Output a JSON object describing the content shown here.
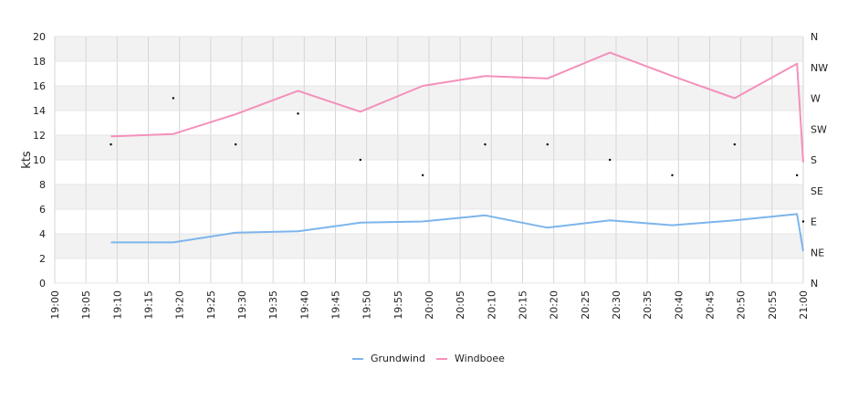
{
  "chart_data": {
    "type": "line",
    "ylabel": "kts",
    "ylim": [
      0,
      20
    ],
    "y_ticks": [
      "0",
      "2",
      "4",
      "6",
      "8",
      "10",
      "12",
      "14",
      "16",
      "18",
      "20"
    ],
    "x_ticks": [
      "19:00",
      "19:05",
      "19:10",
      "19:15",
      "19:20",
      "19:25",
      "19:30",
      "19:35",
      "19:40",
      "19:45",
      "19:50",
      "19:55",
      "20:00",
      "20:05",
      "20:10",
      "20:15",
      "20:20",
      "20:25",
      "20:30",
      "20:35",
      "20:40",
      "20:45",
      "20:50",
      "20:55",
      "21:00"
    ],
    "y2_ticks": [
      "N",
      "NE",
      "E",
      "SE",
      "S",
      "SW",
      "W",
      "NW",
      "N"
    ],
    "y2lim": [
      0,
      360
    ],
    "grid": true,
    "legend": "bottom-center",
    "series": [
      {
        "name": "Grundwind",
        "color": "#7cb5ec",
        "x": [
          "19:09",
          "19:19",
          "19:29",
          "19:39",
          "19:49",
          "19:59",
          "20:09",
          "20:19",
          "20:29",
          "20:39",
          "20:49",
          "20:59",
          "21:00"
        ],
        "values": [
          3.3,
          3.3,
          4.1,
          4.2,
          4.9,
          5.0,
          5.5,
          4.5,
          5.1,
          4.7,
          5.1,
          5.6,
          2.6
        ]
      },
      {
        "name": "Windboee",
        "color": "#f490bb",
        "x": [
          "19:09",
          "19:19",
          "19:29",
          "19:39",
          "19:49",
          "19:59",
          "20:09",
          "20:19",
          "20:29",
          "20:39",
          "20:49",
          "20:59",
          "21:00"
        ],
        "values": [
          11.9,
          12.1,
          13.7,
          15.6,
          13.9,
          16.0,
          16.8,
          16.6,
          18.7,
          16.8,
          15.0,
          17.8,
          9.8
        ]
      }
    ],
    "direction_points": {
      "x": [
        "19:09",
        "19:19",
        "19:29",
        "19:39",
        "19:49",
        "19:59",
        "20:09",
        "20:19",
        "20:29",
        "20:39",
        "20:49",
        "20:59",
        "21:00"
      ],
      "values": [
        202.5,
        270,
        202.5,
        247.5,
        180,
        157.5,
        202.5,
        202.5,
        180,
        157.5,
        202.5,
        157.5,
        90
      ]
    }
  }
}
